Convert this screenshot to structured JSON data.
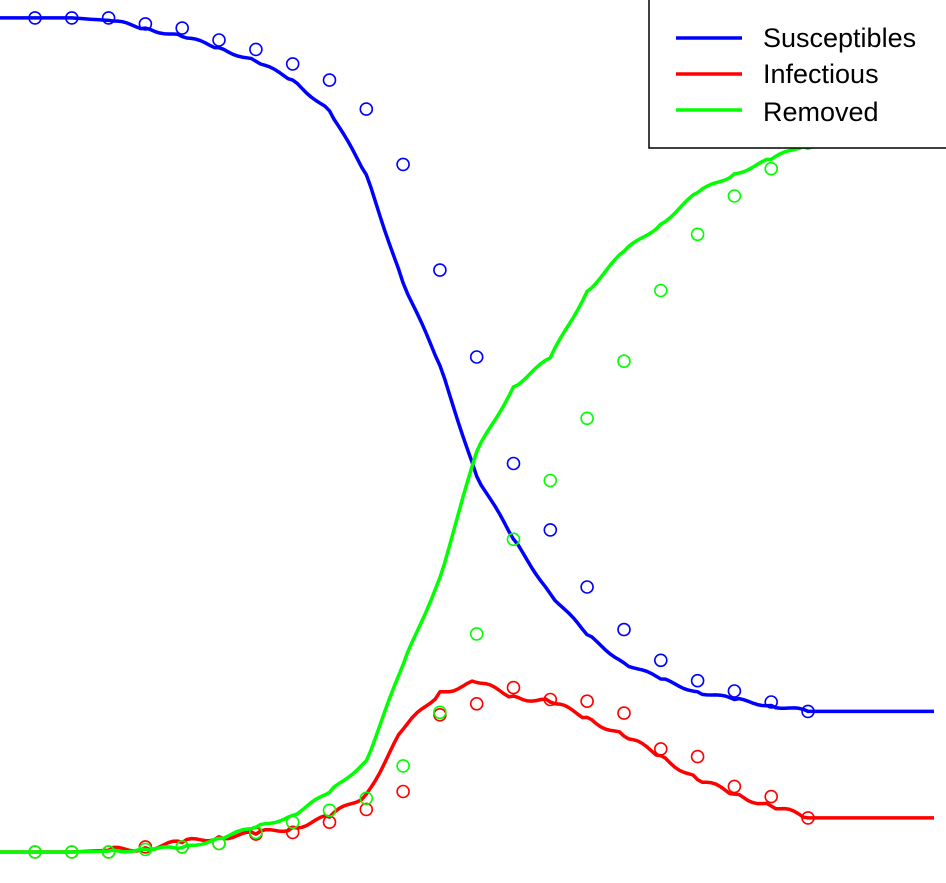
{
  "chart_data": {
    "type": "line",
    "title": "",
    "xlabel": "",
    "ylabel": "",
    "grid": false,
    "legend_position": "top-right",
    "x_range": [
      0,
      25
    ],
    "y_range": [
      0,
      1
    ],
    "series": [
      {
        "name": "Susceptibles",
        "color": "#0000ff",
        "line": {
          "x": [
            0,
            1,
            2,
            3,
            4,
            5,
            6,
            7,
            8,
            9,
            10,
            11,
            12,
            13,
            14,
            15,
            16,
            17,
            18,
            19,
            20,
            21,
            22,
            25
          ],
          "y": [
            0.979,
            0.979,
            0.979,
            0.976,
            0.967,
            0.957,
            0.944,
            0.928,
            0.906,
            0.87,
            0.795,
            0.668,
            0.571,
            0.441,
            0.367,
            0.303,
            0.255,
            0.222,
            0.203,
            0.188,
            0.179,
            0.172,
            0.165,
            0.165
          ]
        },
        "markers": {
          "x": [
            1,
            2,
            3,
            4,
            5,
            6,
            7,
            8,
            9,
            10,
            11,
            12,
            13,
            14,
            15,
            16,
            17,
            18,
            19,
            20,
            21,
            22
          ],
          "y": [
            0.979,
            0.979,
            0.979,
            0.972,
            0.967,
            0.953,
            0.942,
            0.925,
            0.906,
            0.872,
            0.807,
            0.683,
            0.581,
            0.456,
            0.378,
            0.311,
            0.261,
            0.225,
            0.201,
            0.189,
            0.176,
            0.165
          ]
        }
      },
      {
        "name": "Infectious",
        "color": "#ff0000",
        "line": {
          "x": [
            0,
            1,
            2,
            3,
            4,
            5,
            6,
            7,
            8,
            9,
            10,
            11,
            12,
            13,
            14,
            15,
            16,
            17,
            18,
            19,
            20,
            21,
            22,
            25
          ],
          "y": [
            0.0,
            0.0,
            0.0,
            0.002,
            0.005,
            0.011,
            0.018,
            0.021,
            0.029,
            0.041,
            0.068,
            0.144,
            0.188,
            0.199,
            0.183,
            0.176,
            0.158,
            0.136,
            0.113,
            0.085,
            0.068,
            0.054,
            0.04,
            0.04
          ]
        },
        "markers": {
          "x": [
            1,
            2,
            3,
            4,
            5,
            6,
            7,
            8,
            9,
            10,
            11,
            12,
            13,
            14,
            15,
            16,
            17,
            18,
            19,
            20,
            21,
            22
          ],
          "y": [
            0.0,
            0.0,
            0.0,
            0.006,
            0.006,
            0.01,
            0.021,
            0.023,
            0.035,
            0.05,
            0.071,
            0.161,
            0.174,
            0.193,
            0.179,
            0.177,
            0.163,
            0.121,
            0.112,
            0.077,
            0.065,
            0.04
          ]
        }
      },
      {
        "name": "Removed",
        "color": "#00ff00",
        "line": {
          "x": [
            0,
            1,
            2,
            3,
            4,
            5,
            6,
            7,
            8,
            9,
            10,
            11,
            12,
            13,
            14,
            15,
            16,
            17,
            18,
            19,
            20,
            21,
            22,
            25
          ],
          "y": [
            0.0,
            0.0,
            0.0,
            0.001,
            0.003,
            0.005,
            0.016,
            0.029,
            0.043,
            0.07,
            0.107,
            0.22,
            0.322,
            0.47,
            0.546,
            0.58,
            0.658,
            0.705,
            0.737,
            0.774,
            0.796,
            0.813,
            0.832,
            0.832
          ]
        },
        "markers": {
          "x": [
            1,
            2,
            3,
            4,
            5,
            6,
            7,
            8,
            9,
            10,
            11,
            12,
            13,
            14,
            15,
            16,
            17,
            18,
            19,
            20,
            21,
            22
          ],
          "y": [
            0.0,
            0.0,
            0.0,
            0.003,
            0.006,
            0.01,
            0.023,
            0.035,
            0.049,
            0.063,
            0.101,
            0.164,
            0.256,
            0.367,
            0.436,
            0.509,
            0.576,
            0.659,
            0.725,
            0.77,
            0.802,
            0.832
          ]
        }
      }
    ]
  }
}
